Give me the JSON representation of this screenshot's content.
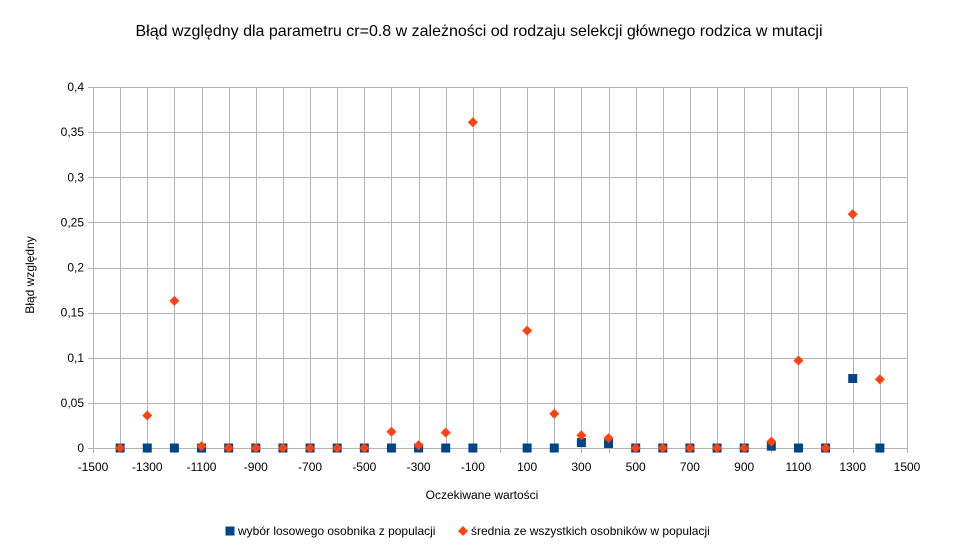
{
  "chart_data": {
    "type": "scatter",
    "title": "Błąd względny dla parametru cr=0.8 w zależności od rodzaju selekcji głównego rodzica w mutacji",
    "xlabel": "Oczekiwane wartości",
    "ylabel": "Błąd względny",
    "xlim": [
      -1500,
      1500
    ],
    "ylim": [
      0,
      0.4
    ],
    "x_ticks": [
      -1500,
      -1300,
      -1100,
      -900,
      -700,
      -500,
      -300,
      -100,
      100,
      300,
      500,
      700,
      900,
      1100,
      1300,
      1500
    ],
    "x_tick_labels": [
      "-1500",
      "-1300",
      "-1100",
      "-900",
      "-700",
      "-500",
      "-300",
      "-100",
      "100",
      "300",
      "500",
      "700",
      "900",
      "1100",
      "1300",
      "1500"
    ],
    "x_gridlines_every": 100,
    "y_ticks": [
      0,
      0.05,
      0.1,
      0.15,
      0.2,
      0.25,
      0.3,
      0.35,
      0.4
    ],
    "y_tick_labels": [
      "0",
      "0,05",
      "0,1",
      "0,15",
      "0,2",
      "0,25",
      "0,3",
      "0,35",
      "0,4"
    ],
    "grid": true,
    "legend_position": "bottom",
    "series": [
      {
        "name": "wybór losowego osobnika z populacji",
        "marker": "square",
        "color": "#004586",
        "x": [
          -1400,
          -1300,
          -1200,
          -1100,
          -1000,
          -900,
          -800,
          -700,
          -600,
          -500,
          -400,
          -300,
          -200,
          -100,
          100,
          200,
          300,
          400,
          500,
          600,
          700,
          800,
          900,
          1000,
          1100,
          1200,
          1300,
          1400
        ],
        "y": [
          0,
          0,
          0,
          0,
          0,
          0,
          0,
          0,
          0,
          0,
          0,
          0,
          0,
          0,
          0,
          0,
          0.006,
          0.005,
          0,
          0,
          0,
          0,
          0,
          0.002,
          0,
          0,
          0.077,
          0
        ]
      },
      {
        "name": "średnia ze wszystkich osobników w populacji",
        "marker": "diamond",
        "color": "#ff420e",
        "x": [
          -1400,
          -1300,
          -1200,
          -1100,
          -1000,
          -900,
          -800,
          -700,
          -600,
          -500,
          -400,
          -300,
          -200,
          -100,
          100,
          200,
          300,
          400,
          500,
          600,
          700,
          800,
          900,
          1000,
          1100,
          1200,
          1300,
          1400
        ],
        "y": [
          0,
          0.036,
          0.163,
          0.002,
          0,
          0,
          0,
          0,
          0,
          0,
          0.018,
          0.003,
          0.017,
          0.361,
          0.13,
          0.038,
          0.014,
          0.011,
          0,
          0,
          0,
          0,
          0,
          0.007,
          0.097,
          0,
          0.259,
          0.076
        ]
      }
    ]
  },
  "colors": {
    "grid": "#b3b3b3",
    "axis": "#b3b3b3",
    "background": "#ffffff"
  }
}
